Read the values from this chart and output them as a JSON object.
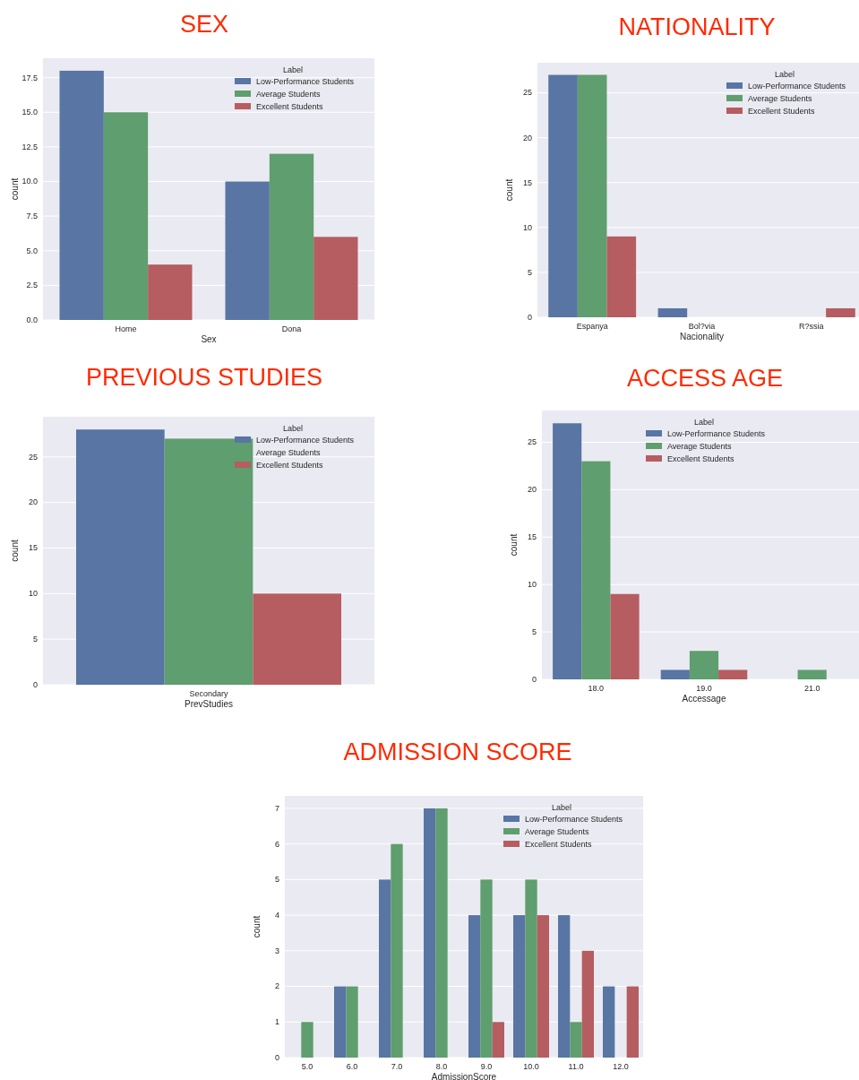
{
  "chart_data": [
    {
      "type": "bar",
      "title": "SEX",
      "xlabel": "Sex",
      "ylabel": "count",
      "legend_title": "Label",
      "categories": [
        "Home",
        "Dona"
      ],
      "series": [
        {
          "name": "Low-Performance Students",
          "color": "#5875a4",
          "values": [
            18,
            10
          ]
        },
        {
          "name": "Average Students",
          "color": "#5f9e6e",
          "values": [
            15,
            12
          ]
        },
        {
          "name": "Excellent Students",
          "color": "#b55d60",
          "values": [
            4,
            6
          ]
        }
      ],
      "ylim": [
        0,
        18.9
      ],
      "yticks": [
        {
          "value": 0,
          "label": "0.0"
        },
        {
          "value": 2.5,
          "label": "2.5"
        },
        {
          "value": 5,
          "label": "5.0"
        },
        {
          "value": 7.5,
          "label": "7.5"
        },
        {
          "value": 10,
          "label": "10.0"
        },
        {
          "value": 12.5,
          "label": "12.5"
        },
        {
          "value": 15,
          "label": "15.0"
        },
        {
          "value": 17.5,
          "label": "17.5"
        }
      ],
      "grid": "y",
      "legend": "top right"
    },
    {
      "type": "bar",
      "title": "NATIONALITY",
      "xlabel": "Nacionality",
      "ylabel": "count",
      "legend_title": "Label",
      "categories": [
        "Espanya",
        "Bol?via",
        "R?ssia"
      ],
      "series": [
        {
          "name": "Low-Performance Students",
          "color": "#5875a4",
          "values": [
            27,
            1,
            0
          ]
        },
        {
          "name": "Average Students",
          "color": "#5f9e6e",
          "values": [
            27,
            0,
            0
          ]
        },
        {
          "name": "Excellent Students",
          "color": "#b55d60",
          "values": [
            9,
            0,
            1
          ]
        }
      ],
      "ylim": [
        0,
        28.35
      ],
      "yticks": [
        0,
        5,
        10,
        15,
        20,
        25
      ],
      "grid": "y",
      "legend": "top right"
    },
    {
      "type": "bar",
      "title": "PREVIOUS STUDIES",
      "xlabel": "PrevStudies",
      "ylabel": "count",
      "legend_title": "Label",
      "categories": [
        "Secondary"
      ],
      "series": [
        {
          "name": "Low-Performance Students",
          "color": "#5875a4",
          "values": [
            28
          ]
        },
        {
          "name": "Average Students",
          "color": "#5f9e6e",
          "values": [
            27
          ]
        },
        {
          "name": "Excellent Students",
          "color": "#b55d60",
          "values": [
            10
          ]
        }
      ],
      "ylim": [
        0,
        29.4
      ],
      "yticks": [
        0,
        5,
        10,
        15,
        20,
        25
      ],
      "grid": "y",
      "legend": "top right"
    },
    {
      "type": "bar",
      "title": "ACCESS AGE",
      "xlabel": "Accessage",
      "ylabel": "count",
      "legend_title": "Label",
      "categories": [
        "18.0",
        "19.0",
        "21.0"
      ],
      "series": [
        {
          "name": "Low-Performance Students",
          "color": "#5875a4",
          "values": [
            27,
            1,
            0
          ]
        },
        {
          "name": "Average Students",
          "color": "#5f9e6e",
          "values": [
            23,
            3,
            1
          ]
        },
        {
          "name": "Excellent Students",
          "color": "#b55d60",
          "values": [
            9,
            1,
            0
          ]
        }
      ],
      "ylim": [
        0,
        28.35
      ],
      "yticks": [
        0,
        5,
        10,
        15,
        20,
        25
      ],
      "grid": "y",
      "legend": "top"
    },
    {
      "type": "bar",
      "title": "ADMISSION SCORE",
      "xlabel": "AdmissionScore",
      "ylabel": "count",
      "legend_title": "Label",
      "categories": [
        "5.0",
        "6.0",
        "7.0",
        "8.0",
        "9.0",
        "10.0",
        "11.0",
        "12.0"
      ],
      "series": [
        {
          "name": "Low-Performance Students",
          "color": "#5875a4",
          "values": [
            0,
            2,
            5,
            7,
            4,
            4,
            4,
            2
          ]
        },
        {
          "name": "Average Students",
          "color": "#5f9e6e",
          "values": [
            1,
            2,
            6,
            7,
            5,
            5,
            1,
            0
          ]
        },
        {
          "name": "Excellent Students",
          "color": "#b55d60",
          "values": [
            0,
            0,
            0,
            0,
            1,
            4,
            3,
            2
          ]
        }
      ],
      "ylim": [
        0,
        7.35
      ],
      "yticks": [
        0,
        1,
        2,
        3,
        4,
        5,
        6,
        7
      ],
      "grid": "y",
      "legend": "top right"
    }
  ]
}
